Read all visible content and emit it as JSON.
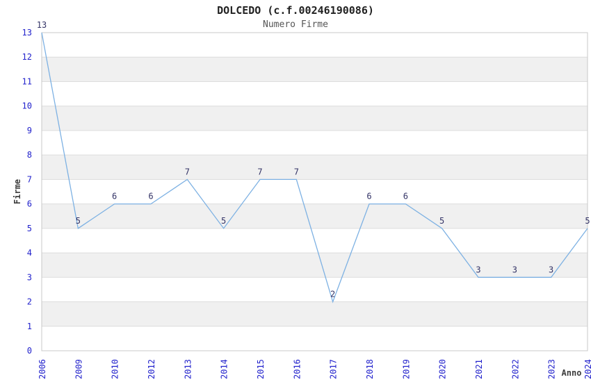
{
  "header": {
    "title": "DOLCEDO (c.f.00246190086)",
    "subtitle": "Numero Firme"
  },
  "chart_data": {
    "type": "line",
    "title": "DOLCEDO (c.f.00246190086)",
    "subtitle": "Numero Firme",
    "xlabel": "Anno",
    "ylabel": "Firme",
    "categories": [
      "2006",
      "2009",
      "2010",
      "2012",
      "2013",
      "2014",
      "2015",
      "2016",
      "2017",
      "2018",
      "2019",
      "2020",
      "2021",
      "2022",
      "2023",
      "2024"
    ],
    "values": [
      13,
      5,
      6,
      6,
      7,
      5,
      7,
      7,
      2,
      6,
      6,
      5,
      3,
      3,
      3,
      5
    ],
    "ylim": [
      0,
      13
    ],
    "ytick_step": 1,
    "grid": "horizontal",
    "banded_background": true,
    "legend": "none",
    "data_labels": true,
    "colors": {
      "line": "#7db1e3",
      "band": "#f0f0f0",
      "grid": "#dcdcdc",
      "border": "#c8c8c8",
      "tick_label": "#2222cc",
      "data_label": "#333366",
      "title": "#222222",
      "subtitle": "#555555",
      "axis_title": "#3d3d3d"
    }
  }
}
